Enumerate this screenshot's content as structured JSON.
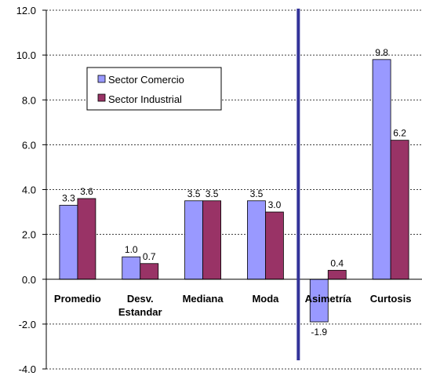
{
  "chart_data": {
    "type": "bar",
    "categories": [
      "Promedio",
      "Desv. Estandar",
      "Mediana",
      "Moda",
      "Asimetría",
      "Curtosis"
    ],
    "category_lines": [
      [
        "Promedio"
      ],
      [
        "Desv.",
        "Estandar"
      ],
      [
        "Mediana"
      ],
      [
        "Moda"
      ],
      [
        "Asimetría"
      ],
      [
        "Curtosis"
      ]
    ],
    "series": [
      {
        "name": "Sector Comercio",
        "color": "#9999ff",
        "values": [
          3.3,
          1.0,
          3.5,
          3.5,
          -1.9,
          9.8
        ],
        "labels": [
          "3.3",
          "1.0",
          "3.5",
          "3.5",
          "-1.9",
          "9.8"
        ]
      },
      {
        "name": "Sector Industrial",
        "color": "#993366",
        "values": [
          3.6,
          0.7,
          3.5,
          3.0,
          0.4,
          6.2
        ],
        "labels": [
          "3.6",
          "0.7",
          "3.5",
          "3.0",
          "0.4",
          "6.2"
        ]
      }
    ],
    "y_ticks": [
      "12.0",
      "10.0",
      "8.0",
      "6.0",
      "4.0",
      "2.0",
      "0.0",
      "-2.0",
      "-4.0"
    ],
    "ylim": [
      -4,
      12
    ],
    "grid": "horizontal dashed",
    "legend_position": "upper-left",
    "divider": {
      "after_category": "Moda",
      "color": "#333399"
    },
    "title": "",
    "xlabel": "",
    "ylabel": ""
  }
}
